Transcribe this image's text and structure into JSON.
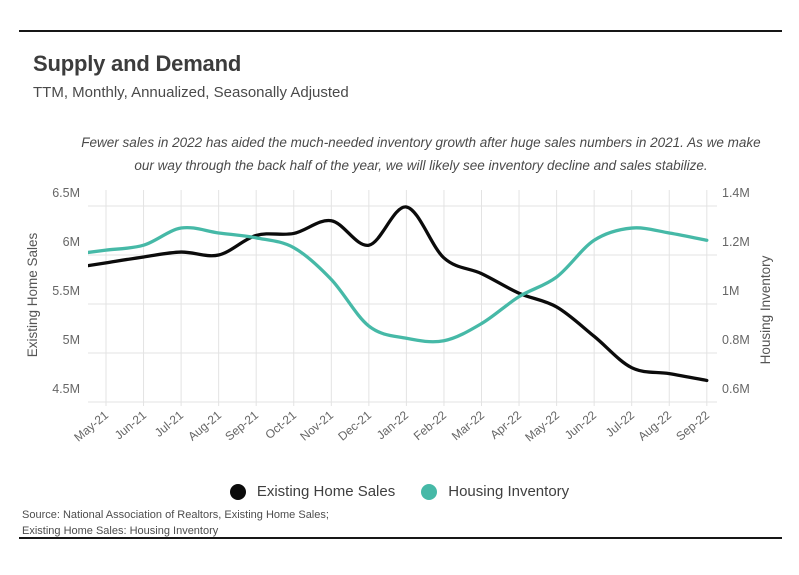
{
  "header": {
    "title": "Supply and Demand",
    "subtitle": "TTM, Monthly, Annualized, Seasonally Adjusted"
  },
  "annotation": {
    "line1": "Fewer sales in 2022 has aided the much-needed inventory growth after huge sales numbers in 2021. As we make",
    "line2": "our way through the back half of the year, we will likely see inventory decline and sales stabilize."
  },
  "chart_data": {
    "type": "line",
    "categories": [
      "May-21",
      "Jun-21",
      "Jul-21",
      "Aug-21",
      "Sep-21",
      "Oct-21",
      "Nov-21",
      "Dec-21",
      "Jan-22",
      "Feb-22",
      "Mar-22",
      "Apr-22",
      "May-22",
      "Jun-22",
      "Jul-22",
      "Aug-22",
      "Sep-22"
    ],
    "series": [
      {
        "name": "Existing Home Sales",
        "axis": "left",
        "color": "#0b0b0b",
        "values": [
          5.92,
          5.98,
          6.03,
          6.0,
          6.2,
          6.22,
          6.35,
          6.1,
          6.49,
          5.97,
          5.81,
          5.61,
          5.47,
          5.17,
          4.85,
          4.79,
          4.72
        ]
      },
      {
        "name": "Housing Inventory",
        "axis": "right",
        "color": "#46b9a7",
        "values": [
          1.22,
          1.24,
          1.31,
          1.29,
          1.27,
          1.23,
          1.1,
          0.91,
          0.86,
          0.85,
          0.92,
          1.03,
          1.11,
          1.26,
          1.31,
          1.29,
          1.26
        ]
      }
    ],
    "left_axis": {
      "label": "Existing Home Sales",
      "min": 4.5,
      "max": 6.5,
      "ticks": [
        {
          "value": 6.5,
          "label": "6.5M"
        },
        {
          "value": 6.0,
          "label": "6M"
        },
        {
          "value": 5.5,
          "label": "5.5M"
        },
        {
          "value": 5.0,
          "label": "5M"
        },
        {
          "value": 4.5,
          "label": "4.5M"
        }
      ]
    },
    "right_axis": {
      "label": "Housing Inventory",
      "min": 0.6,
      "max": 1.4,
      "ticks": [
        {
          "value": 1.4,
          "label": "1.4M"
        },
        {
          "value": 1.2,
          "label": "1.2M"
        },
        {
          "value": 1.0,
          "label": "1M"
        },
        {
          "value": 0.8,
          "label": "0.8M"
        },
        {
          "value": 0.6,
          "label": "0.6M"
        }
      ]
    },
    "grid": true,
    "legend_position": "bottom"
  },
  "legend": {
    "items": [
      {
        "label": "Existing Home Sales",
        "color": "#0b0b0b"
      },
      {
        "label": "Housing Inventory",
        "color": "#46b9a7"
      }
    ]
  },
  "footer": {
    "source_line1": "Source:  National Association of Realtors, Existing Home Sales;",
    "source_line2": "Existing Home Sales: Housing Inventory"
  },
  "colors": {
    "accent_teal": "#46b9a7",
    "series_black": "#0b0b0b",
    "gridline": "#e3e3e3",
    "border": "#161616"
  }
}
